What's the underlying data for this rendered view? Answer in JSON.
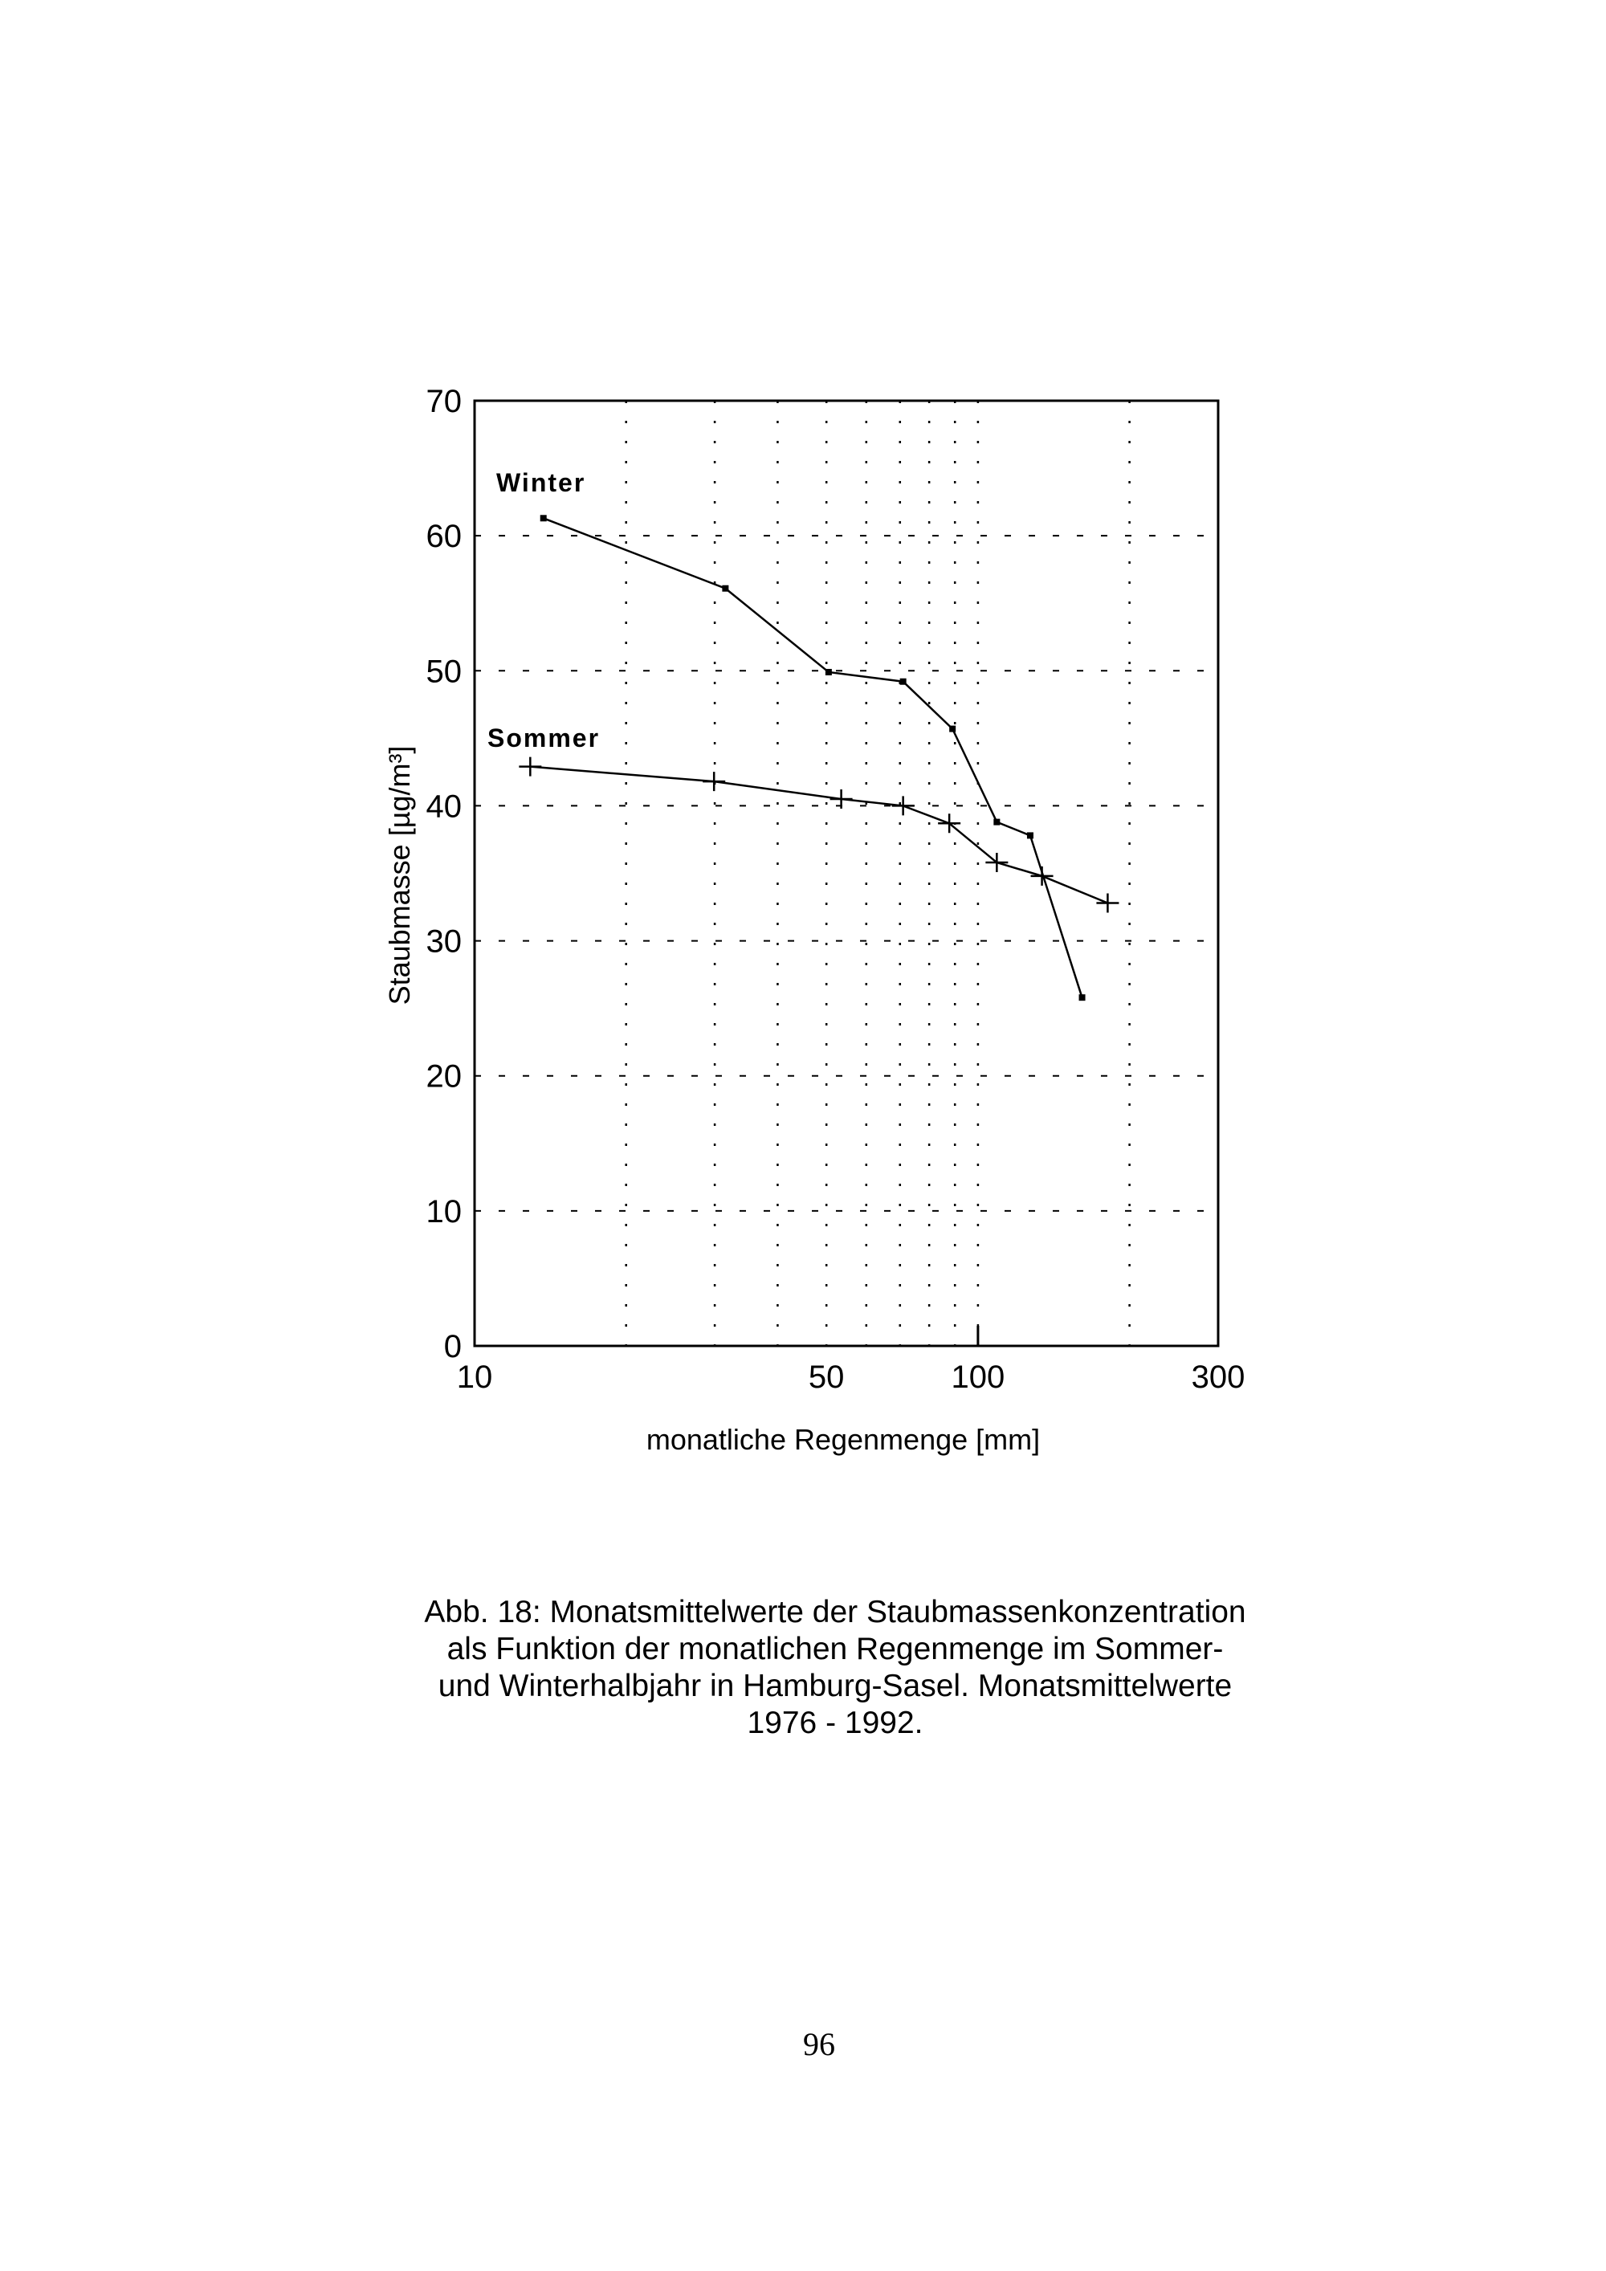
{
  "chart_data": {
    "type": "line",
    "title": "",
    "xlabel": "monatliche Regenmenge [mm]",
    "ylabel": "Staubmasse [µg/m³]",
    "xscale": "log",
    "xlim": [
      10,
      300
    ],
    "ylim": [
      0,
      70
    ],
    "x_ticks": [
      10,
      50,
      100,
      300
    ],
    "x_tick_labels": [
      "10",
      "50",
      "100",
      "300"
    ],
    "y_ticks": [
      0,
      10,
      20,
      30,
      40,
      50,
      60,
      70
    ],
    "y_tick_labels": [
      "0",
      "10",
      "20",
      "30",
      "40",
      "50",
      "60",
      "70"
    ],
    "x_gridlines": [
      20,
      30,
      40,
      50,
      60,
      70,
      80,
      90,
      100,
      200
    ],
    "grid": "dotted",
    "series": [
      {
        "name": "Winter",
        "marker": "square",
        "x": [
          13.7,
          31.5,
          50.5,
          71,
          89,
          109,
          127,
          161
        ],
        "y": [
          61.3,
          56.1,
          49.9,
          49.2,
          45.7,
          38.8,
          37.8,
          25.8
        ]
      },
      {
        "name": "Sommer",
        "marker": "plus",
        "x": [
          12.9,
          29.9,
          53.5,
          71,
          87.7,
          109,
          134,
          181
        ],
        "y": [
          42.9,
          41.8,
          40.5,
          40.0,
          38.7,
          35.8,
          34.8,
          32.8
        ]
      }
    ],
    "color": "#000000"
  },
  "caption": {
    "lines": [
      "Abb. 18: Monatsmittelwerte der Staubmassenkonzentration",
      "als Funktion der monatlichen Regenmenge im Sommer-",
      "und Winterhalbjahr in Hamburg-Sasel. Monatsmittelwerte",
      "1976 - 1992."
    ]
  },
  "page_number": "96"
}
